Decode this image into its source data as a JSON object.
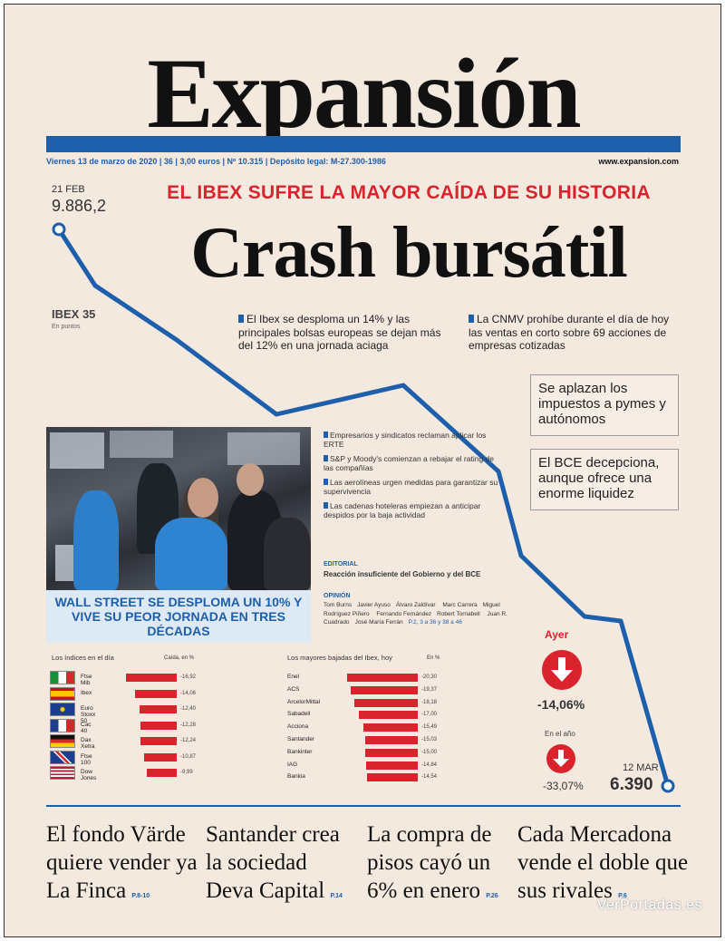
{
  "masthead": "Expansión",
  "dateline": "Viernes 13 de marzo de 2020 | 36 | 3,00 euros | Nº 10.315 | Depósito legal: M-27.300-1986",
  "website": "www.expansion.com",
  "kicker": "EL IBEX SUFRE LA MAYOR CAÍDA DE SU HISTORIA",
  "headline": "Crash bursátil",
  "chart": {
    "label": "IBEX 35",
    "sublabel": "En puntos",
    "start_date": "21 FEB",
    "start_value": "9.886,2",
    "end_date": "12 MAR",
    "end_value": "6.390",
    "line_color": "#1d5fab"
  },
  "bullets": [
    "El Ibex se desploma un 14% y las principales bolsas europeas se dejan más del 12% en una jornada aciaga",
    "La CNMV prohíbe durante el día de hoy las ventas en corto sobre 69 acciones de empresas cotizadas"
  ],
  "boxes": [
    "Se aplazan los impuestos a pymes y autónomos",
    "El BCE decepciona, aunque ofrece una enorme liquidez"
  ],
  "photo_caption": "WALL STREET SE DESPLOMA UN 10% Y VIVE SU PEOR JORNADA EN TRES DÉCADAS",
  "side_items": [
    "Empresarios y sindicatos reclaman aplicar los ERTE",
    "S&P y Moody's comienzan a rebajar el rating de las compañías",
    "Las aerolíneas urgen medidas para garantizar su supervivencia",
    "Las cadenas hoteleras empiezan a anticipar despidos por la baja actividad"
  ],
  "editorial": {
    "tag": "EDITORIAL",
    "text": "Reacción insuficiente del Gobierno y del BCE"
  },
  "opinion": {
    "tag": "OPINIÓN",
    "authors": [
      "Tom Burns",
      "Javier Ayuso",
      "Álvaro Zaldívar",
      "Marc Carrera",
      "Miguel Rodríguez Piñero",
      "Fernando Fernández",
      "Robert Tornabell",
      "Juan R. Cuadrado",
      "José María Ferrán"
    ],
    "pages": "P.2, 3 a 36 y 38 a 46"
  },
  "indices_table": {
    "title": "Los índices en el día",
    "header": "Caída, en %",
    "rows": [
      {
        "name": "Ftse Mib",
        "value": "-16,92",
        "pct": 16.92,
        "flag": "italy"
      },
      {
        "name": "Ibex",
        "value": "-14,06",
        "pct": 14.06,
        "flag": "spain"
      },
      {
        "name": "Euro Stoxx 50",
        "value": "-12,40",
        "pct": 12.4,
        "flag": "eu"
      },
      {
        "name": "Cac 40",
        "value": "-12,28",
        "pct": 12.28,
        "flag": "france"
      },
      {
        "name": "Dax Xetra",
        "value": "-12,24",
        "pct": 12.24,
        "flag": "germany"
      },
      {
        "name": "Ftse 100",
        "value": "-10,87",
        "pct": 10.87,
        "flag": "uk"
      },
      {
        "name": "Dow Jones",
        "value": "-9,99",
        "pct": 9.99,
        "flag": "usa"
      }
    ]
  },
  "drops_table": {
    "title": "Los mayores bajadas del Ibex, hoy",
    "header": "En %",
    "rows": [
      {
        "name": "Enel",
        "value": "-20,30",
        "pct": 20.3
      },
      {
        "name": "ACS",
        "value": "-19,37",
        "pct": 19.37
      },
      {
        "name": "ArcelorMittal",
        "value": "-18,18",
        "pct": 18.18
      },
      {
        "name": "Sabadell",
        "value": "-17,00",
        "pct": 17.0
      },
      {
        "name": "Acciona",
        "value": "-15,49",
        "pct": 15.49
      },
      {
        "name": "Santander",
        "value": "-15,03",
        "pct": 15.03
      },
      {
        "name": "Bankinter",
        "value": "-15,00",
        "pct": 15.0
      },
      {
        "name": "IAG",
        "value": "-14,84",
        "pct": 14.84
      },
      {
        "name": "Bankia",
        "value": "-14,54",
        "pct": 14.54
      }
    ]
  },
  "ayer": {
    "label": "Ayer",
    "value": "-14,06%"
  },
  "anio": {
    "label": "En el año",
    "value": "-33,07%"
  },
  "footer_stories": [
    {
      "headline": "El fondo Värde quiere vender ya La Finca",
      "page": "P.8-10"
    },
    {
      "headline": "Santander crea la sociedad Deva Capital",
      "page": "P.14"
    },
    {
      "headline": "La compra de pisos cayó un 6% en enero",
      "page": "P.26"
    },
    {
      "headline": "Cada Mercadona vende el doble que sus rivales",
      "page": "P.6"
    }
  ],
  "watermark": "VerPortadas.es"
}
